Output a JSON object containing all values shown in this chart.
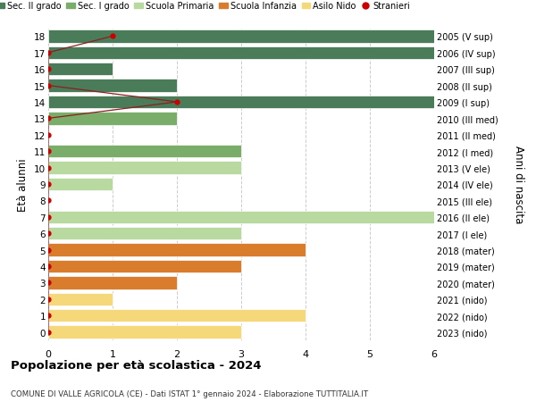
{
  "ages": [
    18,
    17,
    16,
    15,
    14,
    13,
    12,
    11,
    10,
    9,
    8,
    7,
    6,
    5,
    4,
    3,
    2,
    1,
    0
  ],
  "years": [
    "2005 (V sup)",
    "2006 (IV sup)",
    "2007 (III sup)",
    "2008 (II sup)",
    "2009 (I sup)",
    "2010 (III med)",
    "2011 (II med)",
    "2012 (I med)",
    "2013 (V ele)",
    "2014 (IV ele)",
    "2015 (III ele)",
    "2016 (II ele)",
    "2017 (I ele)",
    "2018 (mater)",
    "2019 (mater)",
    "2020 (mater)",
    "2021 (nido)",
    "2022 (nido)",
    "2023 (nido)"
  ],
  "bar_values": [
    6,
    6,
    1,
    2,
    6,
    2,
    0,
    3,
    3,
    1,
    0,
    6,
    3,
    4,
    3,
    2,
    1,
    4,
    3
  ],
  "bar_colors": [
    "#4a7c59",
    "#4a7c59",
    "#4a7c59",
    "#4a7c59",
    "#4a7c59",
    "#7aad6a",
    "#7aad6a",
    "#7aad6a",
    "#b8d9a0",
    "#b8d9a0",
    "#b8d9a0",
    "#b8d9a0",
    "#b8d9a0",
    "#d97c2b",
    "#d97c2b",
    "#d97c2b",
    "#f5d87a",
    "#f5d87a",
    "#f5d87a"
  ],
  "stranieri_x": [
    1,
    0,
    0,
    0,
    2,
    0,
    0,
    0,
    0,
    0,
    0,
    0,
    0,
    0,
    0,
    0,
    0,
    0,
    0
  ],
  "colors": {
    "sec2": "#4a7c59",
    "sec1": "#7aad6a",
    "primaria": "#b8d9a0",
    "infanzia": "#d97c2b",
    "nido": "#f5d87a",
    "stranieri_line": "#8b2020",
    "stranieri_dot": "#cc0000"
  },
  "legend_labels": [
    "Sec. II grado",
    "Sec. I grado",
    "Scuola Primaria",
    "Scuola Infanzia",
    "Asilo Nido",
    "Stranieri"
  ],
  "title": "Popolazione per età scolastica - 2024",
  "subtitle": "COMUNE DI VALLE AGRICOLA (CE) - Dati ISTAT 1° gennaio 2024 - Elaborazione TUTTITALIA.IT",
  "ylabel": "Età alunni",
  "ylabel_right": "Anni di nascita",
  "xlim": [
    0,
    6
  ],
  "ylim": [
    -0.5,
    18.5
  ],
  "bar_height": 0.78,
  "bg_color": "#ffffff",
  "grid_color": "#cccccc",
  "xticks": [
    0,
    1,
    2,
    3,
    4,
    5,
    6
  ]
}
